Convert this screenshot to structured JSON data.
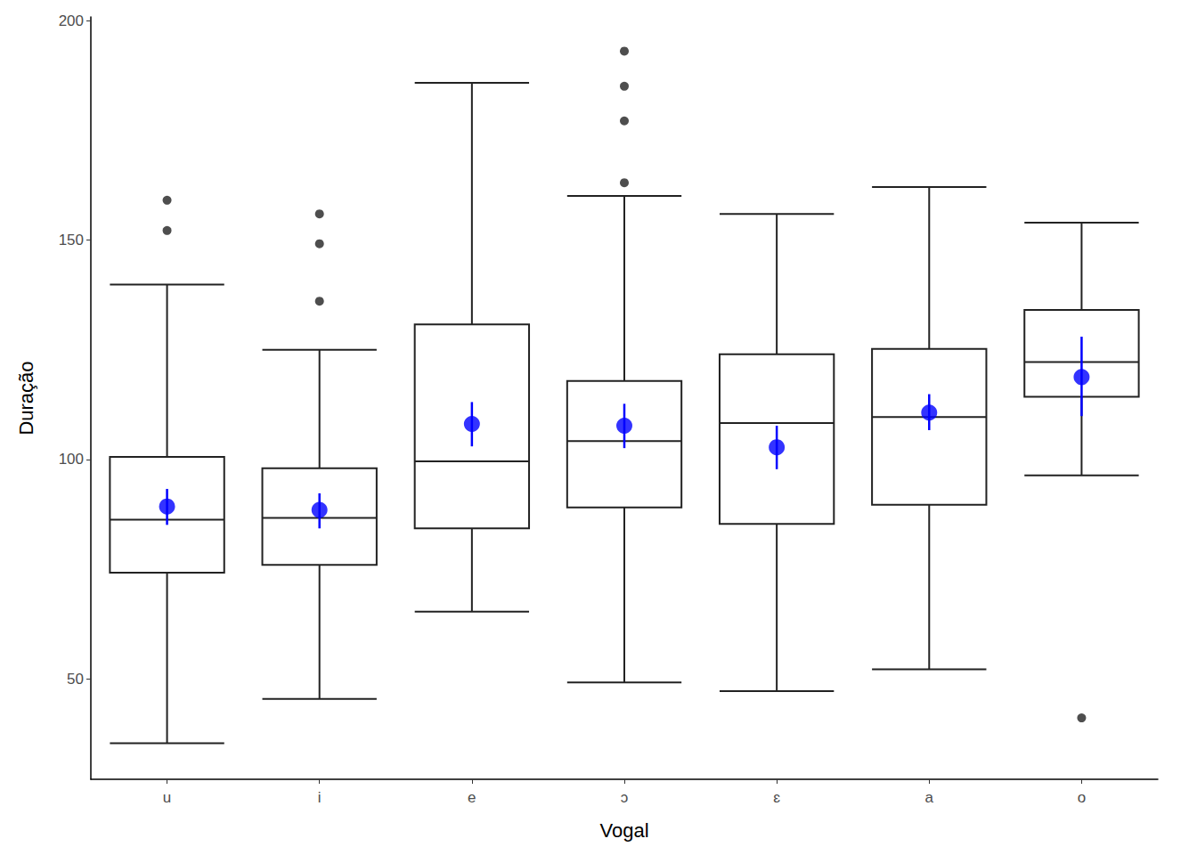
{
  "chart_data": {
    "type": "boxplot",
    "x_label": "Vogal",
    "y_label": "Duração",
    "categories": [
      "u",
      "i",
      "e",
      "ɔ",
      "ɛ",
      "a",
      "o"
    ],
    "ylim": [
      27.1,
      200.9
    ],
    "yticks": [
      50,
      100,
      150,
      200
    ],
    "grid": false,
    "boxplot": {
      "color": "#222222",
      "stats": [
        [
          35.3,
          74.2,
          86.3,
          100.6,
          139.9
        ],
        [
          45.4,
          76.0,
          86.7,
          98.0,
          125.0
        ],
        [
          65.3,
          84.3,
          99.6,
          130.8,
          185.9
        ],
        [
          49.2,
          89.1,
          104.2,
          117.9,
          160.1
        ],
        [
          47.2,
          85.3,
          108.3,
          124.0,
          156.0
        ],
        [
          52.2,
          89.7,
          109.7,
          125.2,
          162.1
        ],
        [
          96.4,
          114.3,
          122.2,
          134.1,
          154.0
        ]
      ],
      "outliers": [
        [
          159.1,
          152.2
        ],
        [
          156.0,
          149.2,
          136.1
        ],
        [],
        [
          193.1,
          185.1,
          177.2,
          163.1
        ],
        [],
        [],
        [
          41.1
        ]
      ]
    },
    "means": {
      "color": "#0000ff",
      "values": [
        89.3,
        88.5,
        108.1,
        107.7,
        102.8,
        110.7,
        118.8
      ],
      "error_low": [
        85.1,
        84.3,
        103.0,
        102.6,
        97.8,
        106.7,
        109.9
      ],
      "error_high": [
        93.3,
        92.3,
        113.1,
        112.7,
        107.7,
        114.9,
        128.0
      ]
    }
  }
}
